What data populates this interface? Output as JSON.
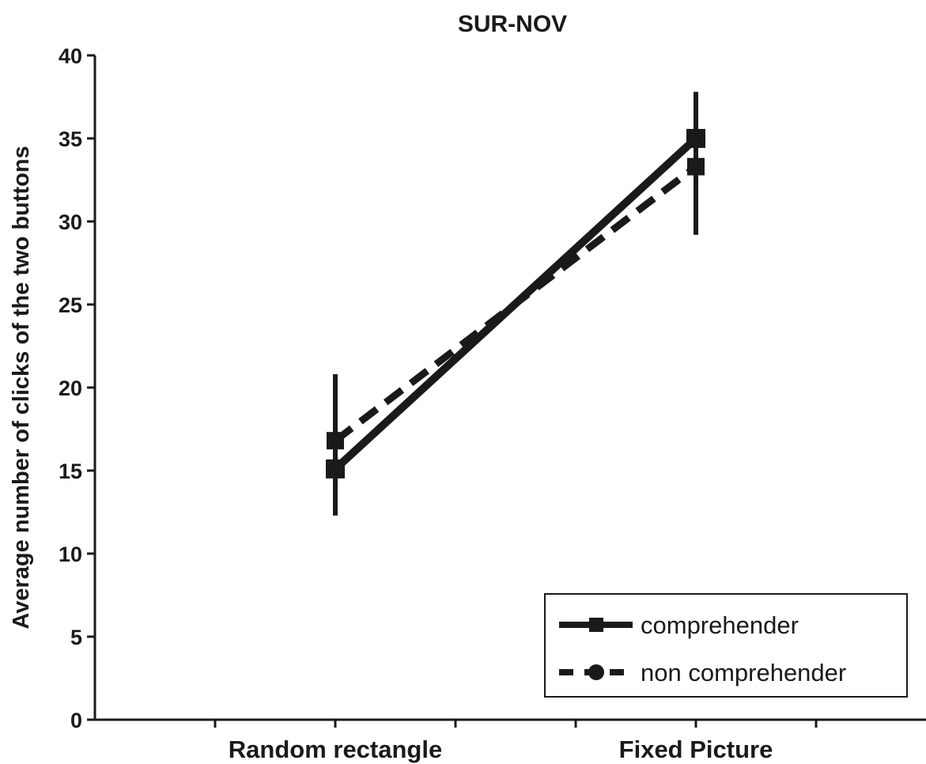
{
  "chart_data": {
    "type": "line",
    "title": "SUR-NOV",
    "xlabel": "",
    "ylabel": "Average number of clicks of the two buttons",
    "categories": [
      "Random rectangle",
      "Fixed Picture"
    ],
    "ylim": [
      0,
      40
    ],
    "yticks": [
      "0",
      "5",
      "10",
      "15",
      "20",
      "25",
      "30",
      "35",
      "40"
    ],
    "grid": false,
    "legend_position": "bottom-right",
    "series": [
      {
        "name": "comprehender",
        "style": "solid",
        "marker": "square",
        "color": "#1a1a1a",
        "values": [
          15.1,
          35.0
        ],
        "error_low": [
          12.3,
          29.2
        ],
        "error_high": [
          20.8,
          37.8
        ]
      },
      {
        "name": "non comprehender",
        "style": "dashed",
        "marker": "circle",
        "color": "#1a1a1a",
        "values": [
          16.8,
          33.3
        ],
        "error_low": [
          12.3,
          29.2
        ],
        "error_high": [
          20.8,
          37.8
        ]
      }
    ]
  }
}
